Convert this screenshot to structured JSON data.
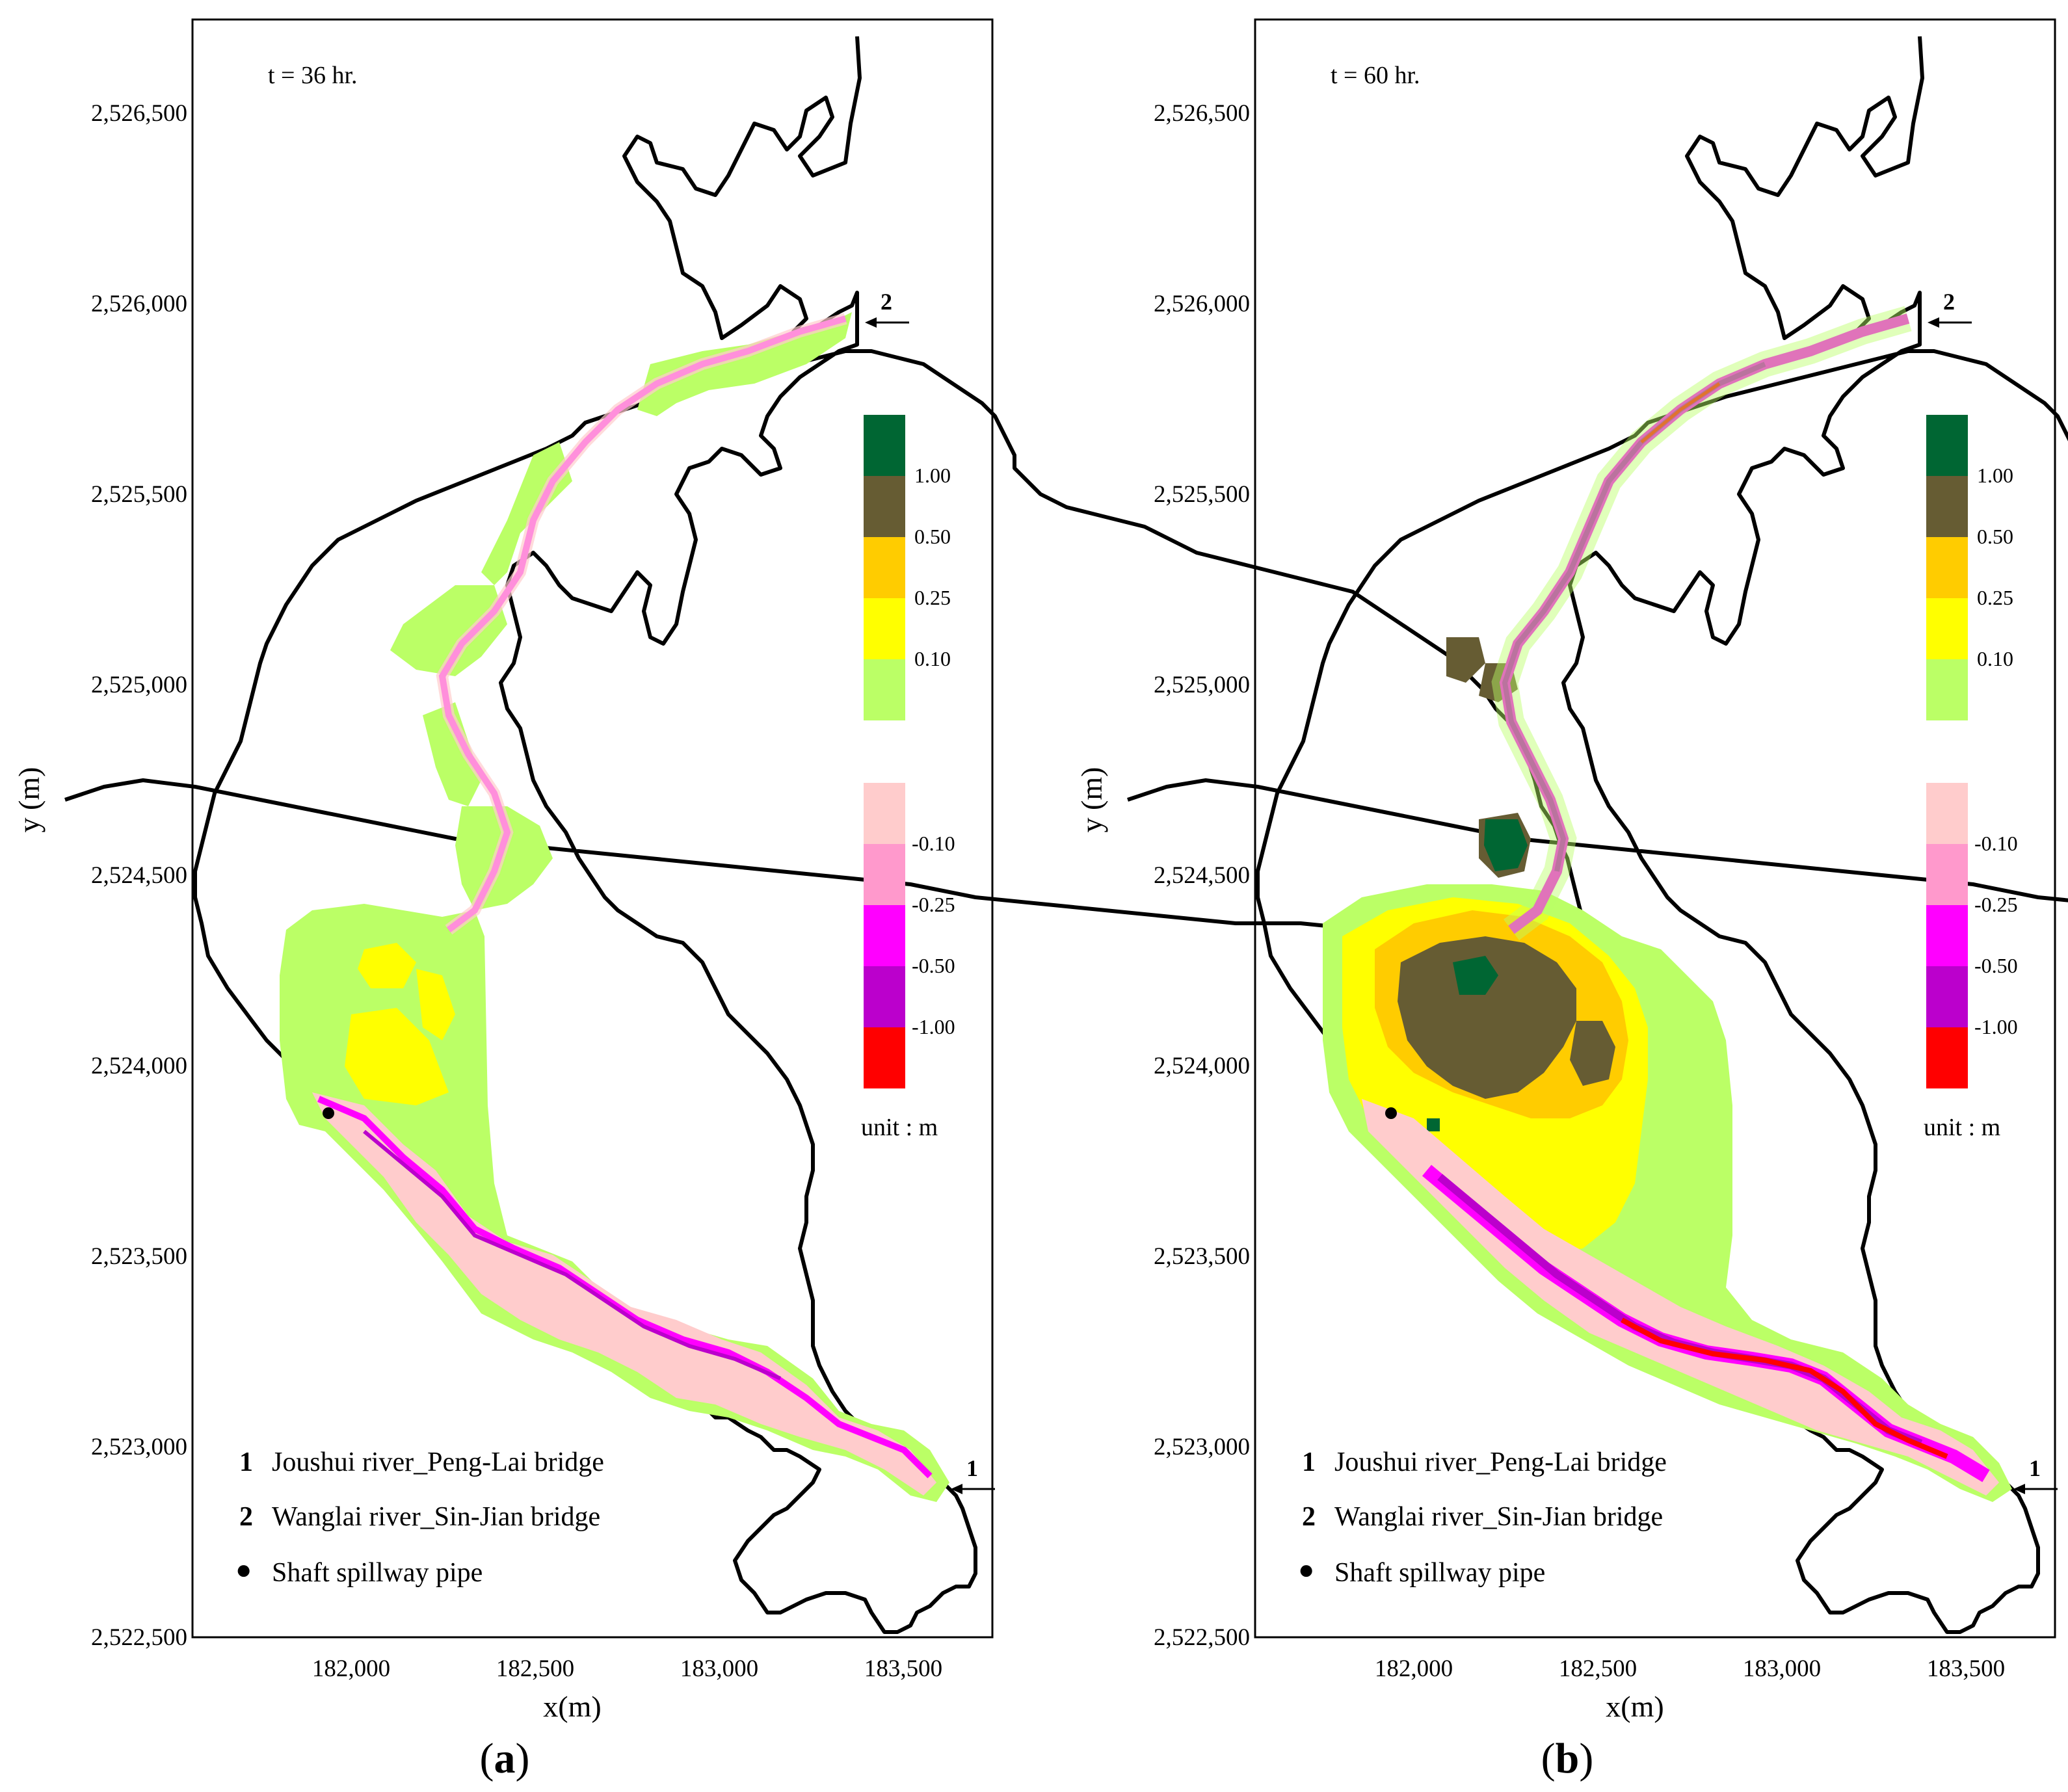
{
  "colors": {
    "pos_gt1": "#006633",
    "pos_050_100": "#665c33",
    "pos_025_050": "#ffcc00",
    "pos_010_025": "#ffff00",
    "pos_lt010": "#bbff66",
    "neg_lt010": "#ffcccc",
    "neg_010_025": "#ff99cc",
    "neg_025_050": "#ff00ff",
    "neg_050_100": "#bb00cc",
    "neg_gt100": "#ff0000",
    "boundary": "#000000"
  },
  "axes": {
    "xlabel": "x(m)",
    "ylabel": "y (m)",
    "x_ticks": [
      "182,000",
      "182,500",
      "183,000",
      "183,500"
    ],
    "y_ticks": [
      "2,526,500",
      "2,526,000",
      "2,525,500",
      "2,525,000",
      "2,524,500",
      "2,524,000",
      "2,523,500",
      "2,523,000",
      "2,522,500"
    ]
  },
  "colorbar": {
    "positive_labels": [
      "1.00",
      "0.50",
      "0.25",
      "0.10"
    ],
    "negative_labels": [
      "-0.10",
      "-0.25",
      "-0.50",
      "-1.00"
    ],
    "unit": "unit : m"
  },
  "legend": {
    "items": [
      {
        "num": "1",
        "text": "Joushui river_Peng-Lai bridge"
      },
      {
        "num": "2",
        "text": "Wanglai river_Sin-Jian bridge"
      },
      {
        "num": "●",
        "text": "Shaft spillway pipe"
      }
    ]
  },
  "markers": {
    "inflow1": "1",
    "inflow2": "2"
  },
  "panels": [
    {
      "id": "a",
      "time": "t = 36 hr.",
      "label_open": "(",
      "label_letter": "a",
      "label_close": ")"
    },
    {
      "id": "b",
      "time": "t = 60 hr.",
      "label_open": "(",
      "label_letter": "b",
      "label_close": ")"
    }
  ]
}
